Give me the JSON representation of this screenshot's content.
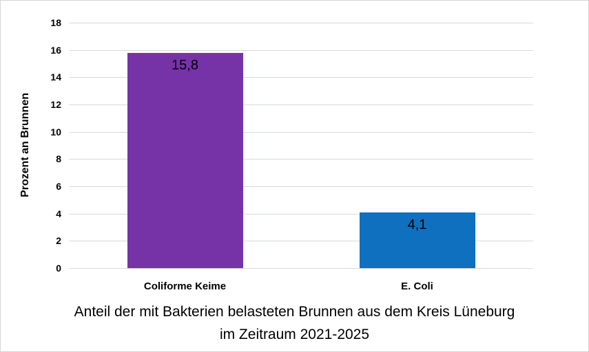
{
  "chart_data": {
    "type": "bar",
    "categories": [
      "Coliforme Keime",
      "E. Coli"
    ],
    "values": [
      15.8,
      4.1
    ],
    "value_labels": [
      "15,8",
      "4,1"
    ],
    "bar_colors": [
      "#7633a8",
      "#0e70be"
    ],
    "title": "Anteil der mit Bakterien belasteten Brunnen aus dem Kreis Lüneburg im Zeitraum 2021-2025",
    "xlabel": "",
    "ylabel": "Prozent an Brunnen",
    "ylim": [
      0,
      18
    ],
    "ytick_step": 2,
    "ytick_labels": [
      "0",
      "2",
      "4",
      "6",
      "8",
      "10",
      "12",
      "14",
      "16",
      "18"
    ],
    "grid": "horizontal",
    "gridline_color": "#d9d9d9",
    "legend": "none",
    "value_label_position": "inside-top",
    "background_color": "#ffffff",
    "frame_border_color": "#d4d4d4",
    "text_color": "#000000"
  }
}
